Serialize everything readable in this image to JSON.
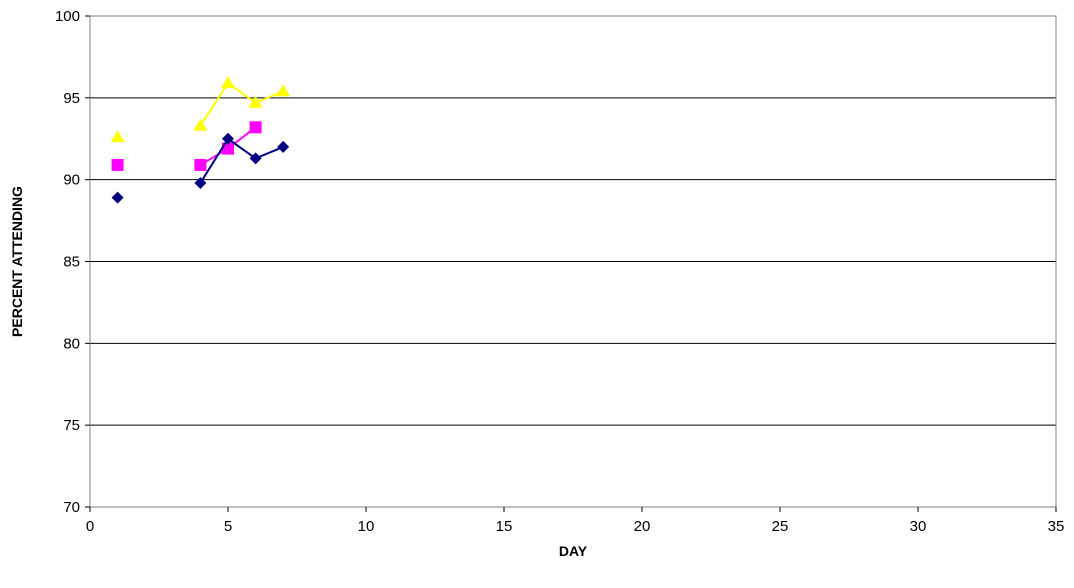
{
  "chart_data": {
    "type": "line",
    "title": "",
    "xlabel": "DAY",
    "ylabel": "PERCENT ATTENDING",
    "xlim": [
      0,
      35
    ],
    "ylim": [
      70,
      100
    ],
    "x_ticks": [
      0,
      5,
      10,
      15,
      20,
      25,
      30,
      35
    ],
    "y_ticks": [
      70,
      75,
      80,
      85,
      90,
      95,
      100
    ],
    "grid": "horizontal",
    "legend": "none",
    "series": [
      {
        "marker": "triangle",
        "color": "#ffff00",
        "points": [
          [
            1,
            92.6
          ],
          null,
          [
            4,
            93.3
          ],
          [
            5,
            95.9
          ],
          [
            6,
            94.7
          ],
          [
            7,
            95.4
          ]
        ]
      },
      {
        "marker": "square",
        "color": "#ff00ff",
        "points": [
          [
            1,
            90.9
          ],
          null,
          [
            4,
            90.9
          ],
          [
            5,
            91.9
          ],
          [
            6,
            93.2
          ]
        ]
      },
      {
        "marker": "diamond",
        "color": "#000080",
        "points": [
          [
            1,
            88.9
          ],
          null,
          [
            4,
            89.8
          ],
          [
            5,
            92.5
          ],
          [
            6,
            91.3
          ],
          [
            7,
            92.0
          ]
        ]
      }
    ]
  }
}
